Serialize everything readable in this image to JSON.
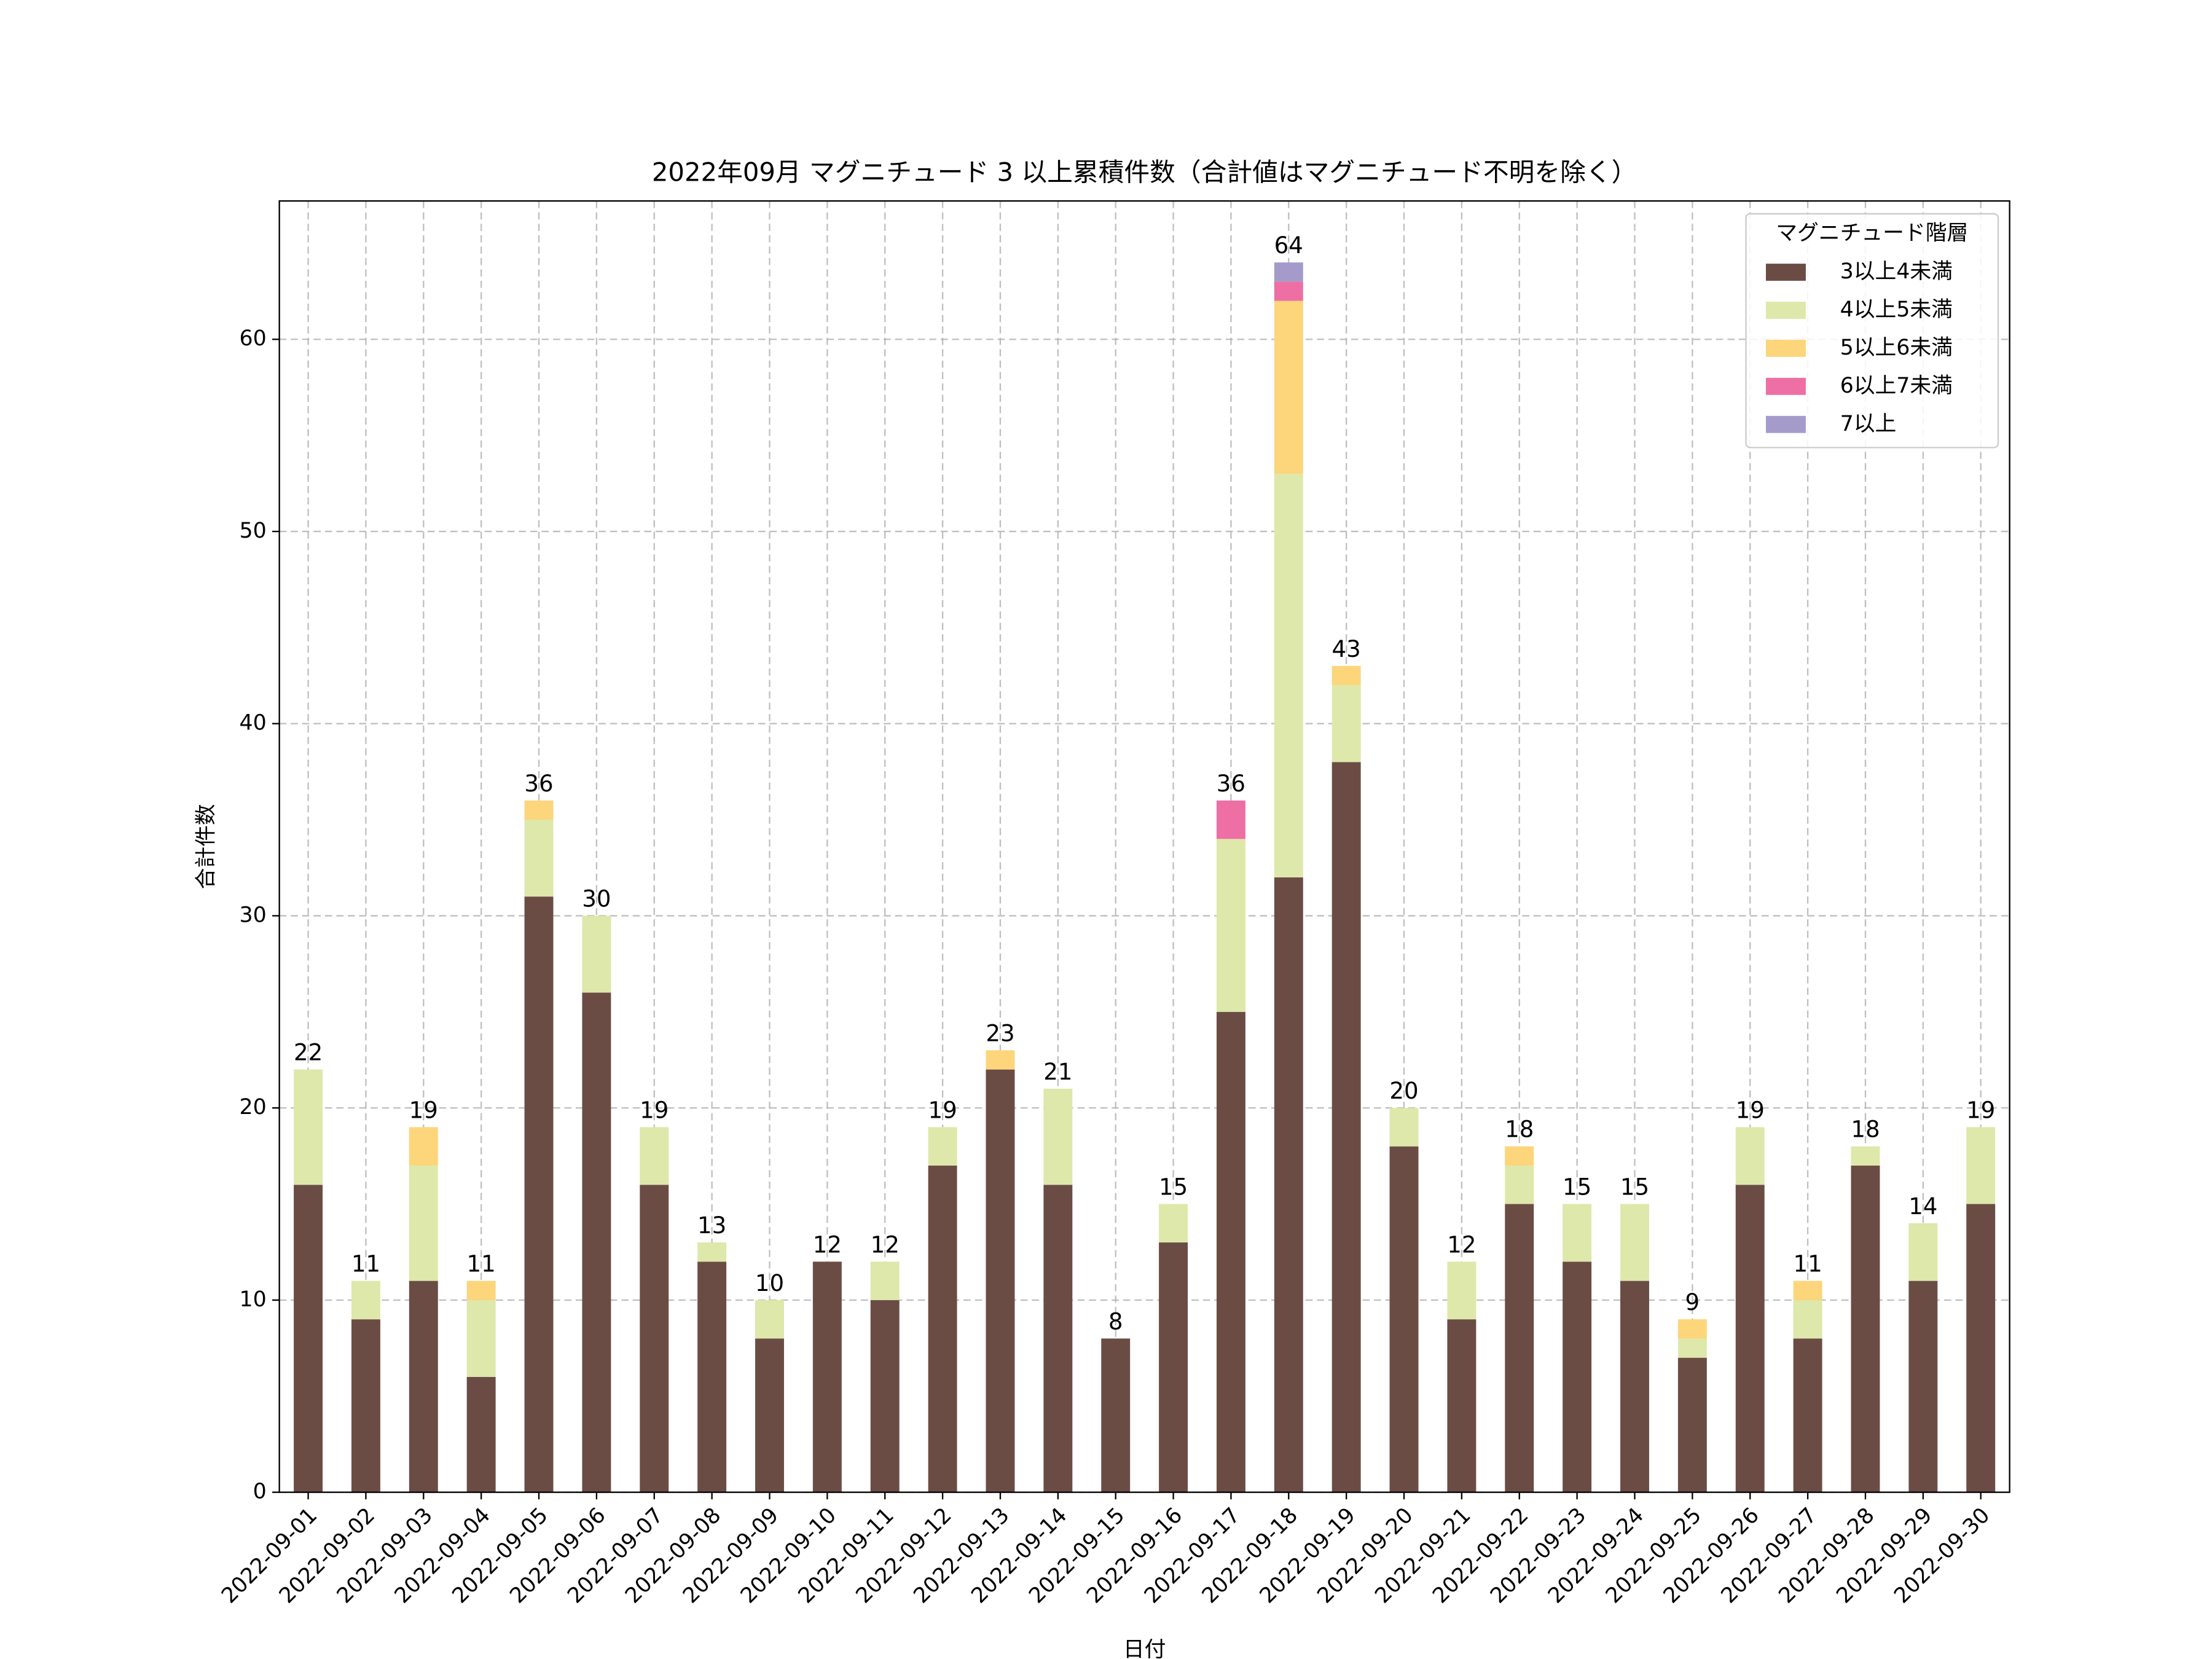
{
  "chart_data": {
    "type": "stacked-bar",
    "title": "2022年09月 マグニチュード 3 以上累積件数（合計値はマグニチュード不明を除く）",
    "xlabel": "日付",
    "ylabel": "合計件数",
    "legend_title": "マグニチュード階層",
    "legend": "upper right",
    "grid": true,
    "categories": [
      "2022-09-01",
      "2022-09-02",
      "2022-09-03",
      "2022-09-04",
      "2022-09-05",
      "2022-09-06",
      "2022-09-07",
      "2022-09-08",
      "2022-09-09",
      "2022-09-10",
      "2022-09-11",
      "2022-09-12",
      "2022-09-13",
      "2022-09-14",
      "2022-09-15",
      "2022-09-16",
      "2022-09-17",
      "2022-09-18",
      "2022-09-19",
      "2022-09-20",
      "2022-09-21",
      "2022-09-22",
      "2022-09-23",
      "2022-09-24",
      "2022-09-25",
      "2022-09-26",
      "2022-09-27",
      "2022-09-28",
      "2022-09-29",
      "2022-09-30"
    ],
    "series": [
      {
        "name": "3以上4未満",
        "color": "#6b4c45",
        "values": [
          16,
          9,
          11,
          6,
          31,
          26,
          16,
          12,
          8,
          12,
          10,
          17,
          22,
          16,
          8,
          13,
          25,
          32,
          38,
          18,
          9,
          15,
          12,
          11,
          7,
          16,
          8,
          17,
          11,
          15
        ]
      },
      {
        "name": "4以上5未満",
        "color": "#dde8aa",
        "values": [
          6,
          2,
          6,
          4,
          4,
          4,
          3,
          1,
          2,
          0,
          2,
          2,
          0,
          5,
          0,
          2,
          9,
          21,
          4,
          2,
          3,
          2,
          3,
          4,
          1,
          3,
          2,
          1,
          3,
          4
        ]
      },
      {
        "name": "5以上6未満",
        "color": "#fdd57a",
        "values": [
          0,
          0,
          2,
          1,
          1,
          0,
          0,
          0,
          0,
          0,
          0,
          0,
          1,
          0,
          0,
          0,
          0,
          9,
          1,
          0,
          0,
          1,
          0,
          0,
          1,
          0,
          1,
          0,
          0,
          0
        ]
      },
      {
        "name": "6以上7未満",
        "color": "#ee6fa3",
        "values": [
          0,
          0,
          0,
          0,
          0,
          0,
          0,
          0,
          0,
          0,
          0,
          0,
          0,
          0,
          0,
          0,
          2,
          1,
          0,
          0,
          0,
          0,
          0,
          0,
          0,
          0,
          0,
          0,
          0,
          0
        ]
      },
      {
        "name": "7以上",
        "color": "#a59bcb",
        "values": [
          0,
          0,
          0,
          0,
          0,
          0,
          0,
          0,
          0,
          0,
          0,
          0,
          0,
          0,
          0,
          0,
          0,
          1,
          0,
          0,
          0,
          0,
          0,
          0,
          0,
          0,
          0,
          0,
          0,
          0
        ]
      }
    ],
    "totals": [
      22,
      11,
      19,
      11,
      36,
      30,
      19,
      13,
      10,
      12,
      12,
      19,
      23,
      21,
      8,
      15,
      36,
      64,
      43,
      20,
      12,
      18,
      15,
      15,
      9,
      19,
      11,
      18,
      14,
      19
    ],
    "ylim": [
      0,
      67.2
    ],
    "yticks": [
      0,
      10,
      20,
      30,
      40,
      50,
      60
    ]
  }
}
